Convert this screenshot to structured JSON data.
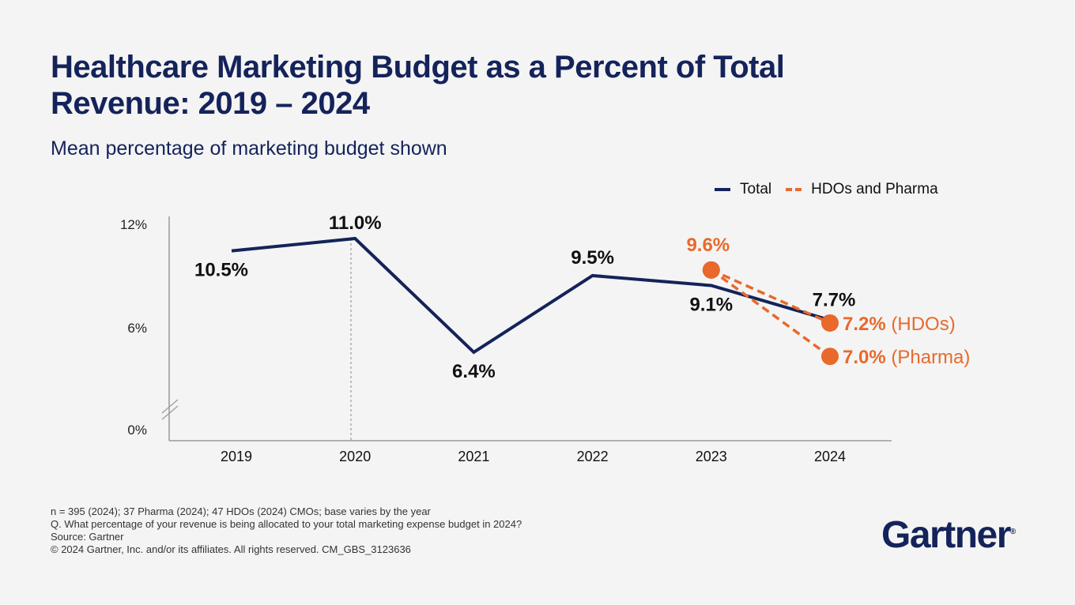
{
  "title": "Healthcare Marketing Budget as a Percent of Total Revenue: 2019 – 2024",
  "subtitle": "Mean percentage of marketing budget shown",
  "colors": {
    "total": "#14235a",
    "hdos_pharma": "#e8692b",
    "background": "#f4f4f4"
  },
  "chart_data": {
    "type": "line",
    "categories": [
      "2019",
      "2020",
      "2021",
      "2022",
      "2023",
      "2024"
    ],
    "y_ticks": [
      "12%",
      "6%",
      "0%"
    ],
    "y_axis_break": true,
    "legend_placement": "top-right",
    "legend": [
      "Total",
      "HDOs and Pharma"
    ],
    "series": [
      {
        "name": "Total",
        "style": "solid",
        "values": [
          10.5,
          11.0,
          6.4,
          9.5,
          9.1,
          7.7
        ],
        "labels": [
          "10.5%",
          "11.0%",
          "6.4%",
          "9.5%",
          "9.1%",
          "7.7%"
        ]
      },
      {
        "name": "HDOs",
        "style": "dashed",
        "x": [
          "2023",
          "2024"
        ],
        "values": [
          9.6,
          7.2
        ],
        "labels": [
          "9.6%",
          "7.2%"
        ],
        "end_label": "(HDOs)"
      },
      {
        "name": "Pharma",
        "style": "dashed",
        "x": [
          "2023",
          "2024"
        ],
        "values": [
          9.6,
          7.0
        ],
        "labels": [
          "",
          "7.0%"
        ],
        "end_label": "(Pharma)"
      }
    ]
  },
  "footnotes": [
    "n = 395 (2024); 37 Pharma (2024); 47 HDOs (2024) CMOs; base varies by the year",
    "Q. What percentage of your revenue is being allocated to your total marketing expense budget in 2024?",
    "Source: Gartner",
    "© 2024 Gartner, Inc. and/or its affiliates. All rights reserved. CM_GBS_3123636"
  ],
  "logo": "Gartner"
}
